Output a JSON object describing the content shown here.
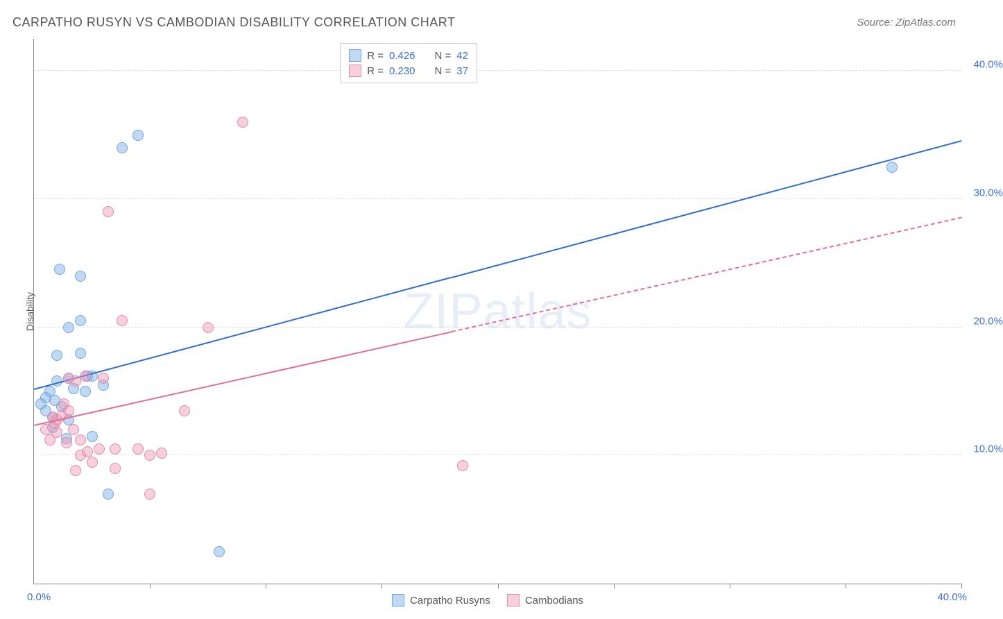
{
  "title": "CARPATHO RUSYN VS CAMBODIAN DISABILITY CORRELATION CHART",
  "source_label": "Source: ZipAtlas.com",
  "watermark": "ZIPatlas",
  "y_axis": {
    "title": "Disability",
    "min": 0.0,
    "max": 42.5,
    "ticks": [
      10.0,
      20.0,
      30.0,
      40.0
    ],
    "tick_labels": [
      "10.0%",
      "20.0%",
      "30.0%",
      "40.0%"
    ],
    "label_color": "#3b6fd6",
    "label_fontsize": 15
  },
  "x_axis": {
    "min": 0.0,
    "max": 40.0,
    "origin_label": "0.0%",
    "max_label": "40.0%",
    "tick_positions": [
      5,
      10,
      15,
      20,
      25,
      30,
      35,
      40
    ],
    "label_color": "#3b6fd6"
  },
  "grid_color": "#dddddd",
  "axis_color": "#888888",
  "series": [
    {
      "id": "carpatho",
      "label": "Carpatho Rusyns",
      "color_fill": "rgba(120,170,230,0.45)",
      "color_stroke": "#6fa6e0",
      "line_color": "#2f6fd0",
      "line_width": 2.5,
      "line_dash": "solid",
      "trend": {
        "x1": 0.0,
        "y1": 15.1,
        "x2": 40.0,
        "y2": 34.5
      },
      "trend_solid_until_x": 18.0,
      "marker_radius": 8,
      "stats": {
        "R": "0.426",
        "N": "42"
      },
      "points": [
        [
          0.3,
          14.0
        ],
        [
          0.5,
          14.5
        ],
        [
          0.5,
          13.5
        ],
        [
          0.7,
          15.0
        ],
        [
          0.8,
          12.2
        ],
        [
          0.8,
          13.0
        ],
        [
          0.9,
          14.3
        ],
        [
          1.0,
          15.8
        ],
        [
          1.0,
          17.8
        ],
        [
          1.1,
          24.5
        ],
        [
          1.2,
          13.8
        ],
        [
          1.4,
          11.3
        ],
        [
          1.5,
          20.0
        ],
        [
          1.5,
          16.0
        ],
        [
          1.5,
          12.8
        ],
        [
          1.7,
          15.2
        ],
        [
          2.0,
          24.0
        ],
        [
          2.0,
          18.0
        ],
        [
          2.0,
          20.5
        ],
        [
          2.2,
          15.0
        ],
        [
          2.3,
          16.2
        ],
        [
          2.5,
          16.2
        ],
        [
          2.5,
          11.5
        ],
        [
          3.0,
          15.5
        ],
        [
          3.2,
          7.0
        ],
        [
          3.8,
          34.0
        ],
        [
          4.5,
          35.0
        ],
        [
          8.0,
          2.5
        ],
        [
          37.0,
          32.5
        ]
      ]
    },
    {
      "id": "cambodian",
      "label": "Cambodians",
      "color_fill": "rgba(240,150,180,0.45)",
      "color_stroke": "#e28aa8",
      "line_color": "#e36f92",
      "line_width": 2,
      "line_dash": "dashed",
      "trend": {
        "x1": 0.0,
        "y1": 12.3,
        "x2": 40.0,
        "y2": 28.5
      },
      "trend_solid_until_x": 18.0,
      "marker_radius": 8,
      "stats": {
        "R": "0.230",
        "N": "37"
      },
      "points": [
        [
          0.5,
          12.0
        ],
        [
          0.7,
          11.2
        ],
        [
          0.8,
          13.0
        ],
        [
          0.9,
          12.5
        ],
        [
          1.0,
          11.8
        ],
        [
          1.0,
          12.8
        ],
        [
          1.2,
          13.1
        ],
        [
          1.3,
          14.0
        ],
        [
          1.4,
          11.0
        ],
        [
          1.5,
          13.5
        ],
        [
          1.5,
          16.0
        ],
        [
          1.7,
          12.0
        ],
        [
          1.8,
          15.8
        ],
        [
          1.8,
          8.8
        ],
        [
          2.0,
          11.2
        ],
        [
          2.0,
          10.0
        ],
        [
          2.2,
          16.2
        ],
        [
          2.3,
          10.3
        ],
        [
          2.5,
          9.5
        ],
        [
          2.8,
          10.5
        ],
        [
          3.0,
          16.0
        ],
        [
          3.2,
          29.0
        ],
        [
          3.5,
          9.0
        ],
        [
          3.5,
          10.5
        ],
        [
          3.8,
          20.5
        ],
        [
          4.5,
          10.5
        ],
        [
          5.0,
          10.0
        ],
        [
          5.0,
          7.0
        ],
        [
          5.5,
          10.2
        ],
        [
          6.5,
          13.5
        ],
        [
          7.5,
          20.0
        ],
        [
          9.0,
          36.0
        ],
        [
          18.5,
          9.2
        ]
      ]
    }
  ],
  "legend_top": {
    "border_color": "#cccccc",
    "rows": [
      {
        "swatch_fill": "rgba(120,170,230,0.45)",
        "swatch_stroke": "#6fa6e0",
        "r_label": "R =",
        "r_val": "0.426",
        "n_label": "N =",
        "n_val": "42"
      },
      {
        "swatch_fill": "rgba(240,150,180,0.45)",
        "swatch_stroke": "#e28aa8",
        "r_label": "R =",
        "r_val": "0.230",
        "n_label": "N =",
        "n_val": "37"
      }
    ]
  },
  "legend_bottom": [
    {
      "swatch_fill": "rgba(120,170,230,0.45)",
      "swatch_stroke": "#6fa6e0",
      "label": "Carpatho Rusyns"
    },
    {
      "swatch_fill": "rgba(240,150,180,0.45)",
      "swatch_stroke": "#e28aa8",
      "label": "Cambodians"
    }
  ]
}
